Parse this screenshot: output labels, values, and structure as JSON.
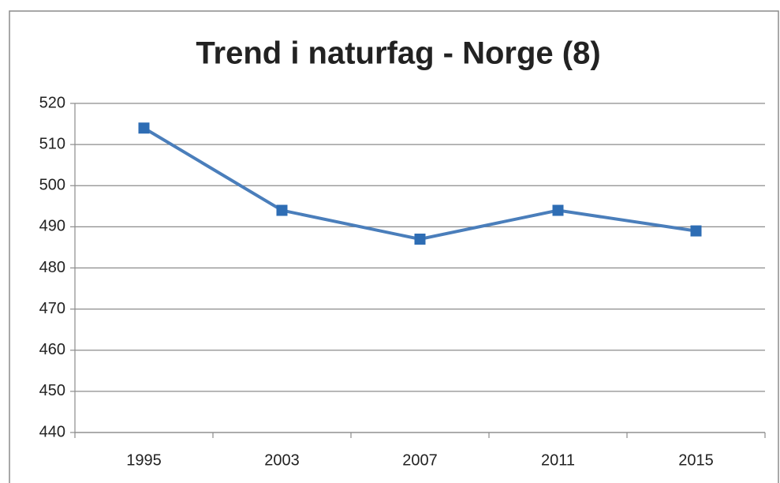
{
  "chart_data": {
    "type": "line",
    "title": "Trend i naturfag - Norge (8)",
    "categories": [
      "1995",
      "2003",
      "2007",
      "2011",
      "2015"
    ],
    "series": [
      {
        "name": "Norge",
        "color": "#4a7ebb",
        "marker_color": "#2e6db4",
        "values": [
          514,
          494,
          487,
          494,
          489
        ]
      }
    ],
    "ylim": [
      440,
      520
    ],
    "yticks": [
      440,
      450,
      460,
      470,
      480,
      490,
      500,
      510,
      520
    ],
    "grid": true,
    "legend": false
  }
}
